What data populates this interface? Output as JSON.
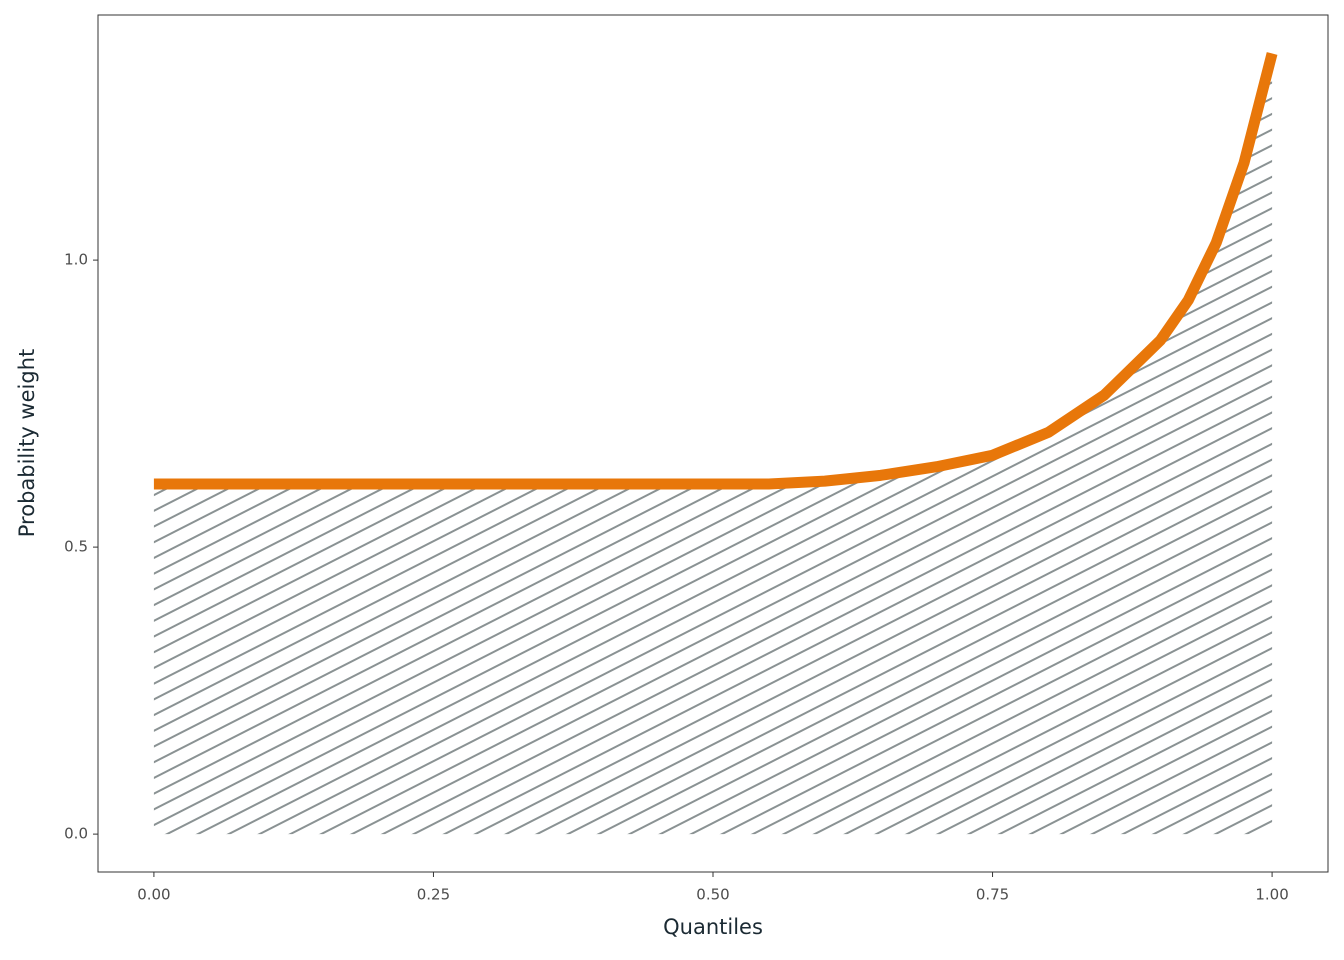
{
  "chart_data": {
    "type": "line",
    "x_label": "Quantiles",
    "y_label": "Probability weight",
    "x": [
      0,
      0.05,
      0.1,
      0.15,
      0.2,
      0.25,
      0.3,
      0.35,
      0.4,
      0.45,
      0.5,
      0.55,
      0.6,
      0.65,
      0.7,
      0.75,
      0.8,
      0.85,
      0.9,
      0.925,
      0.95,
      0.975,
      1.0
    ],
    "values": [
      0.61,
      0.61,
      0.61,
      0.61,
      0.61,
      0.61,
      0.61,
      0.61,
      0.61,
      0.61,
      0.61,
      0.61,
      0.615,
      0.625,
      0.64,
      0.66,
      0.7,
      0.765,
      0.86,
      0.93,
      1.03,
      1.17,
      1.36
    ],
    "color": "#e8770a",
    "area": true,
    "area_fill": "hatch",
    "area_color": "#8a9293",
    "xlim": [
      -0.05,
      1.05
    ],
    "ylim": [
      -0.066,
      1.427
    ],
    "xticks": [
      {
        "value": 0,
        "label": "0.00"
      },
      {
        "value": 0.25,
        "label": "0.25"
      },
      {
        "value": 0.5,
        "label": "0.50"
      },
      {
        "value": 0.75,
        "label": "0.75"
      },
      {
        "value": 1,
        "label": "1.00"
      }
    ],
    "yticks": [
      {
        "value": 0,
        "label": "0.0"
      },
      {
        "value": 0.5,
        "label": "0.5"
      },
      {
        "value": 1,
        "label": "1.0"
      }
    ],
    "grid": false
  }
}
